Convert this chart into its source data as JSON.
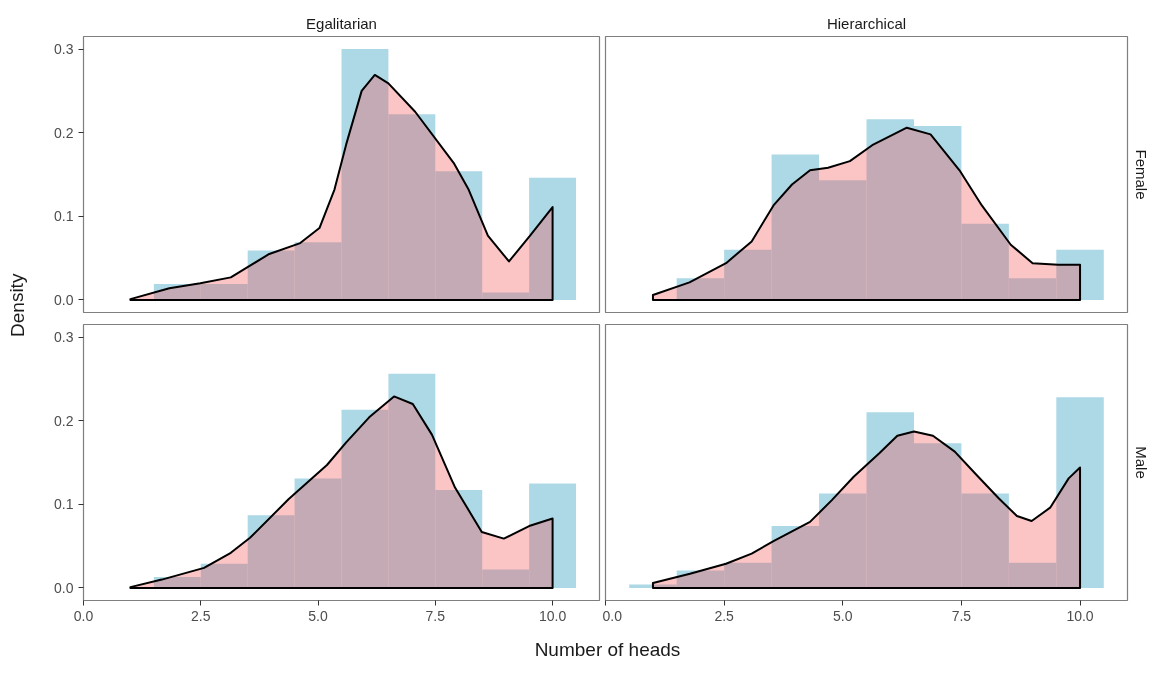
{
  "chart_data": [
    {
      "type": "histogram",
      "title": "Egalitarian",
      "ylabel": "Density",
      "tick_labels": "y",
      "bins": [
        0.5,
        1.5,
        2.5,
        3.5,
        4.5,
        5.5,
        6.5,
        7.5,
        8.5,
        9.5,
        10.5
      ],
      "xlim": [
        0,
        11
      ],
      "ylim": [
        -0.015,
        0.315
      ],
      "yticks": [
        {
          "value": 0,
          "label": "0.0"
        },
        {
          "value": 0.1,
          "label": "0.1"
        },
        {
          "value": 0.2,
          "label": "0.2"
        },
        {
          "value": 0.3,
          "label": "0.3"
        }
      ],
      "series": [
        {
          "color": "#add8e6",
          "values": [
            0,
            0.019,
            0.019,
            0.059,
            0.069,
            0.3,
            0.222,
            0.154,
            0.009,
            0.146
          ]
        },
        {
          "type": "area",
          "color": "#f54a4a",
          "x": [
            1,
            1.83,
            2.49,
            3.14,
            3.55,
            3.96,
            4.62,
            5.03,
            5.35,
            5.6,
            5.93,
            6.21,
            6.5,
            7.07,
            7.89,
            8.21,
            8.62,
            9.07,
            9.52,
            10
          ],
          "values": [
            0.001,
            0.014,
            0.02,
            0.027,
            0.041,
            0.055,
            0.068,
            0.086,
            0.132,
            0.186,
            0.25,
            0.269,
            0.259,
            0.225,
            0.164,
            0.132,
            0.077,
            0.046,
            0.077,
            0.111
          ]
        }
      ]
    },
    {
      "type": "histogram",
      "title": "Hierarchical",
      "y2label": "Female",
      "tick_labels": false,
      "bins": [
        0.5,
        1.5,
        2.5,
        3.5,
        4.5,
        5.5,
        6.5,
        7.5,
        8.5,
        9.5,
        10.5
      ],
      "xlim": [
        0,
        11
      ],
      "ylim": [
        -0.015,
        0.315
      ],
      "series": [
        {
          "color": "#add8e6",
          "values": [
            0,
            0.026,
            0.06,
            0.174,
            0.143,
            0.216,
            0.208,
            0.091,
            0.026,
            0.06
          ]
        },
        {
          "type": "area",
          "color": "#f54a4a",
          "x": [
            1,
            1.77,
            2.54,
            3.08,
            3.54,
            3.93,
            4.31,
            4.69,
            5.15,
            5.62,
            6.35,
            6.85,
            7.46,
            7.93,
            8.54,
            9.0,
            9.54,
            10
          ],
          "values": [
            0.006,
            0.021,
            0.044,
            0.07,
            0.113,
            0.138,
            0.155,
            0.158,
            0.166,
            0.185,
            0.206,
            0.198,
            0.155,
            0.113,
            0.066,
            0.044,
            0.042,
            0.042
          ]
        }
      ]
    },
    {
      "type": "histogram",
      "xlabel": "Number of heads",
      "bins": [
        0.5,
        1.5,
        2.5,
        3.5,
        4.5,
        5.5,
        6.5,
        7.5,
        8.5,
        9.5,
        10.5
      ],
      "xlim": [
        0,
        11
      ],
      "ylim": [
        -0.015,
        0.315
      ],
      "xticks": [
        {
          "value": 0,
          "label": "0.0"
        },
        {
          "value": 2.5,
          "label": "2.5"
        },
        {
          "value": 5,
          "label": "5.0"
        },
        {
          "value": 7.5,
          "label": "7.5"
        },
        {
          "value": 10,
          "label": "10.0"
        }
      ],
      "yticks": [
        {
          "value": 0,
          "label": "0.0"
        },
        {
          "value": 0.1,
          "label": "0.1"
        },
        {
          "value": 0.2,
          "label": "0.2"
        },
        {
          "value": 0.3,
          "label": "0.3"
        }
      ],
      "series": [
        {
          "color": "#add8e6",
          "values": [
            0,
            0.013,
            0.029,
            0.087,
            0.131,
            0.213,
            0.256,
            0.117,
            0.022,
            0.125
          ]
        },
        {
          "type": "area",
          "color": "#f54a4a",
          "x": [
            1,
            1.67,
            2.57,
            3.14,
            3.55,
            4.37,
            5.19,
            5.6,
            6.09,
            6.62,
            7.02,
            7.43,
            7.92,
            8.49,
            8.96,
            9.5,
            10
          ],
          "values": [
            0.001,
            0.01,
            0.024,
            0.042,
            0.06,
            0.106,
            0.147,
            0.174,
            0.204,
            0.229,
            0.22,
            0.183,
            0.12,
            0.067,
            0.059,
            0.074,
            0.083
          ]
        }
      ]
    },
    {
      "type": "histogram",
      "y2label": "Male",
      "tick_labels": "x",
      "bins": [
        0.5,
        1.5,
        2.5,
        3.5,
        4.5,
        5.5,
        6.5,
        7.5,
        8.5,
        9.5,
        10.5
      ],
      "xlim": [
        0,
        11
      ],
      "ylim": [
        -0.015,
        0.315
      ],
      "xticks": [
        {
          "value": 0,
          "label": "0.0"
        },
        {
          "value": 2.5,
          "label": "2.5"
        },
        {
          "value": 5,
          "label": "5.0"
        },
        {
          "value": 7.5,
          "label": "7.5"
        },
        {
          "value": 10,
          "label": "10.0"
        }
      ],
      "series": [
        {
          "color": "#add8e6",
          "values": [
            0.004,
            0.021,
            0.03,
            0.074,
            0.113,
            0.21,
            0.173,
            0.113,
            0.03,
            0.228
          ]
        },
        {
          "type": "area",
          "color": "#f54a4a",
          "x": [
            1,
            1.78,
            2.54,
            3.08,
            3.54,
            4.31,
            4.77,
            5.23,
            5.77,
            6.15,
            6.5,
            6.9,
            7.36,
            7.82,
            8.29,
            8.67,
            8.98,
            9.37,
            9.76,
            10
          ],
          "values": [
            0.006,
            0.017,
            0.029,
            0.041,
            0.056,
            0.079,
            0.105,
            0.133,
            0.161,
            0.182,
            0.187,
            0.182,
            0.163,
            0.135,
            0.107,
            0.086,
            0.08,
            0.096,
            0.131,
            0.144
          ]
        }
      ]
    }
  ]
}
